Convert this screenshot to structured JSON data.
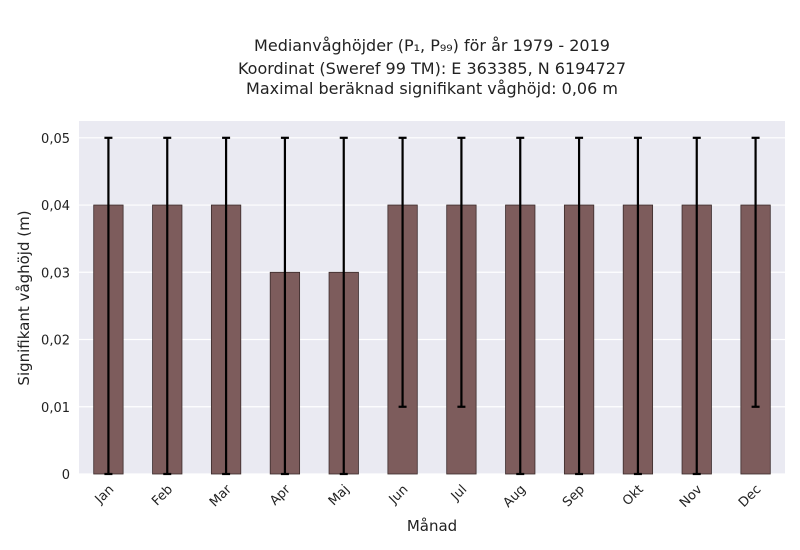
{
  "chart_data": {
    "type": "bar",
    "title_lines": [
      "Medianvåghöjder (P₁, P₉₉) för år 1979 - 2019",
      "Koordinat (Sweref 99 TM): E 363385, N 6194727",
      "Maximal beräknad signifikant våghöjd: 0,06 m"
    ],
    "xlabel": "Månad",
    "ylabel": "Signifikant våghöjd (m)",
    "categories": [
      "Jan",
      "Feb",
      "Mar",
      "Apr",
      "Maj",
      "Jun",
      "Jul",
      "Aug",
      "Sep",
      "Okt",
      "Nov",
      "Dec"
    ],
    "values": [
      0.04,
      0.04,
      0.04,
      0.03,
      0.03,
      0.04,
      0.04,
      0.04,
      0.04,
      0.04,
      0.04,
      0.04
    ],
    "err_low": [
      0.0,
      0.0,
      0.0,
      0.0,
      0.0,
      0.01,
      0.01,
      0.0,
      0.0,
      0.0,
      0.0,
      0.01
    ],
    "err_high": [
      0.05,
      0.05,
      0.05,
      0.05,
      0.05,
      0.05,
      0.05,
      0.05,
      0.05,
      0.05,
      0.05,
      0.05
    ],
    "yticks": [
      0,
      0.01,
      0.02,
      0.03,
      0.04,
      0.05
    ],
    "ytick_labels": [
      "0",
      "0,01",
      "0,02",
      "0,03",
      "0,04",
      "0,05"
    ],
    "ylim": [
      0,
      0.0525
    ],
    "grid": true,
    "colors": {
      "background": "#eaeaf2",
      "bar": "#7d5c5c",
      "errorbar": "#000000",
      "grid": "#ffffff"
    }
  }
}
